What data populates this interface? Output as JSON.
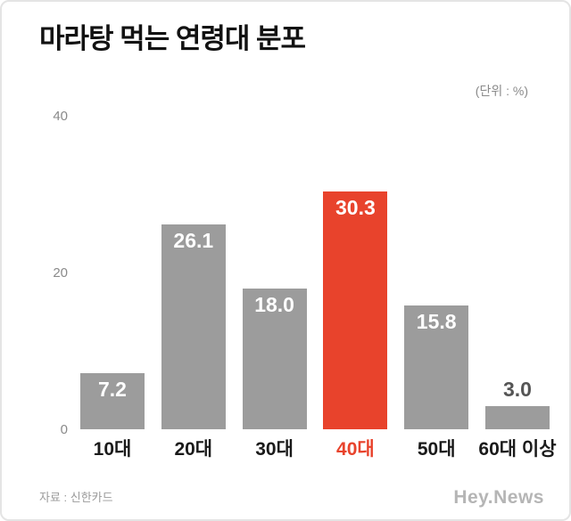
{
  "chart_data": {
    "type": "bar",
    "title": "마라탕 먹는 연령대 분포",
    "unit_label": "(단위 : %)",
    "categories": [
      "10대",
      "20대",
      "30대",
      "40대",
      "50대",
      "60대 이상"
    ],
    "values": [
      7.2,
      26.1,
      18.0,
      30.3,
      15.8,
      3.0
    ],
    "value_labels": [
      "7.2",
      "26.1",
      "18.0",
      "30.3",
      "15.8",
      "3.0"
    ],
    "highlight_index": 3,
    "bar_color": "#9c9c9c",
    "highlight_color": "#e8432c",
    "small_value_label_color": "#555555",
    "ylim": [
      0,
      40
    ],
    "yticks": [
      "0",
      "20",
      "40"
    ],
    "legend": "none",
    "grid": "off",
    "source": "자료 : 신한카드",
    "watermark": "Hey.News"
  }
}
